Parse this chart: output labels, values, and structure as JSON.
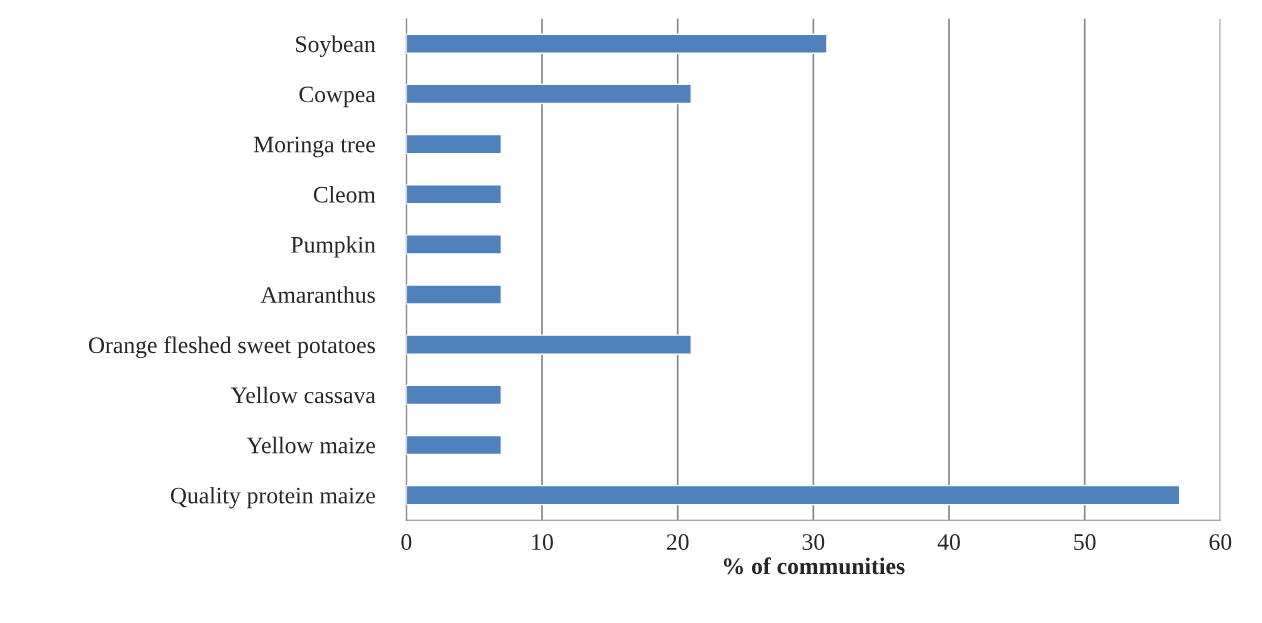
{
  "chart_data": {
    "type": "bar",
    "orientation": "horizontal",
    "xlabel": "% of communities",
    "categories": [
      "Soybean",
      "Cowpea",
      "Moringa tree",
      "Cleom",
      "Pumpkin",
      "Amaranthus",
      "Orange fleshed sweet potatoes",
      "Yellow cassava",
      "Yellow maize",
      "Quality protein maize"
    ],
    "values": [
      31,
      21,
      7,
      7,
      7,
      7,
      21,
      7,
      7,
      57
    ],
    "color": "#4f81bd",
    "xlim": [
      0,
      60
    ],
    "xticks": [
      0,
      10,
      20,
      30,
      40,
      50,
      60
    ],
    "grid": "x",
    "legend": false
  }
}
